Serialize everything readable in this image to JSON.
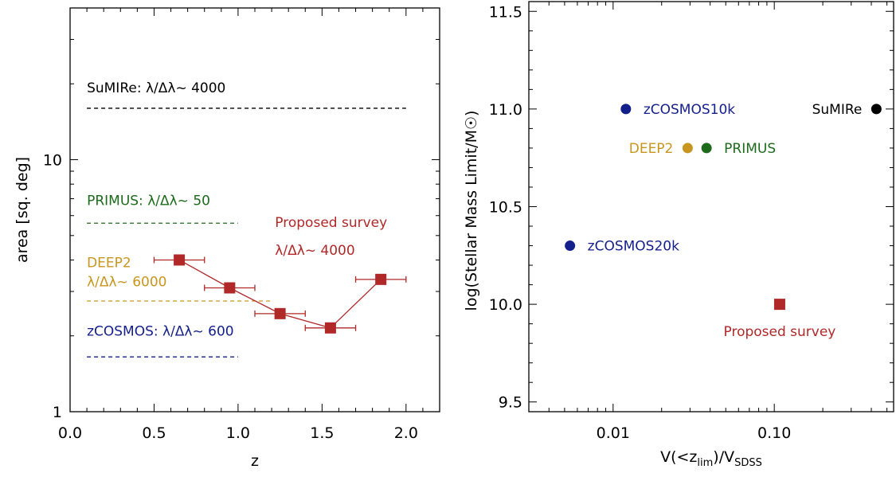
{
  "colors": {
    "sumire": "#000000",
    "primus": "#1b6b1b",
    "deep2": "#c8961e",
    "zcosmos": "#131f8a",
    "proposed": "#b02828"
  },
  "chart_data": [
    {
      "type": "line",
      "xlabel": "z",
      "ylabel": "area [sq. deg]",
      "xlim": [
        0.0,
        2.2
      ],
      "ylim": [
        1,
        40
      ],
      "yscale": "log",
      "grid": false,
      "xticks": [
        {
          "value": 0.0,
          "label": "0.0"
        },
        {
          "value": 0.5,
          "label": "0.5"
        },
        {
          "value": 1.0,
          "label": "1.0"
        },
        {
          "value": 1.5,
          "label": "1.5"
        },
        {
          "value": 2.0,
          "label": "2.0"
        }
      ],
      "yticks": [
        {
          "value": 1,
          "label": "1"
        },
        {
          "value": 10,
          "label": "10"
        }
      ],
      "hlines": [
        {
          "key": "sumire",
          "y": 16,
          "x": [
            0.1,
            2.0
          ]
        },
        {
          "key": "primus",
          "y": 5.6,
          "x": [
            0.1,
            1.0
          ]
        },
        {
          "key": "deep2",
          "y": 2.75,
          "x": [
            0.1,
            1.2
          ]
        },
        {
          "key": "zcosmos",
          "y": 1.65,
          "x": [
            0.1,
            1.0
          ]
        }
      ],
      "series": [
        {
          "name": "Proposed survey",
          "x": [
            0.65,
            0.95,
            1.25,
            1.55,
            1.85
          ],
          "y": [
            4.0,
            3.1,
            2.45,
            2.15,
            3.35
          ],
          "xerr": [
            0.15,
            0.15,
            0.15,
            0.15,
            0.15
          ]
        }
      ],
      "annotations": [
        {
          "key": "sumire",
          "x": 0.1,
          "y": 18.5,
          "text": "SuMIRe: λ/Δλ~ 4000"
        },
        {
          "key": "primus",
          "x": 0.1,
          "y": 6.6,
          "text": "PRIMUS: λ/Δλ~ 50"
        },
        {
          "key": "proposed",
          "x": 1.22,
          "y": 5.4,
          "text": "Proposed survey"
        },
        {
          "key": "proposed",
          "x": 1.22,
          "y": 4.2,
          "text": "λ/Δλ~ 4000"
        },
        {
          "key": "deep2",
          "x": 0.1,
          "y": 3.75,
          "text": "DEEP2"
        },
        {
          "key": "deep2",
          "x": 0.1,
          "y": 3.15,
          "text": "λ/Δλ~ 6000"
        },
        {
          "key": "zcosmos",
          "x": 0.1,
          "y": 2.0,
          "text": "zCOSMOS: λ/Δλ~ 600"
        }
      ]
    },
    {
      "type": "scatter",
      "xlabel": "V(<z",
      "xlabel_sub1": "lim",
      "xlabel_mid": ")/V",
      "xlabel_sub2": "SDSS",
      "ylabel": "log(Stellar Mass Limit/M",
      "ylabel_sym": "☉",
      "ylabel_end": ")",
      "xscale": "log",
      "xlim": [
        0.003,
        0.55
      ],
      "ylim": [
        9.45,
        11.55
      ],
      "grid": false,
      "xticks": [
        {
          "value": 0.01,
          "label": "0.01"
        },
        {
          "value": 0.1,
          "label": "0.10"
        }
      ],
      "yticks": [
        {
          "value": 9.5,
          "label": "9.5"
        },
        {
          "value": 10.0,
          "label": "10.0"
        },
        {
          "value": 10.5,
          "label": "10.5"
        },
        {
          "value": 11.0,
          "label": "11.0"
        },
        {
          "value": 11.5,
          "label": "11.5"
        }
      ],
      "points": [
        {
          "label": "zCOSMOS10k",
          "x": 0.012,
          "y": 11.0,
          "key": "zcosmos",
          "marker": "circle",
          "label_side": "right"
        },
        {
          "label": "SuMIRe",
          "x": 0.43,
          "y": 11.0,
          "key": "sumire",
          "marker": "circle",
          "label_side": "left"
        },
        {
          "label": "DEEP2",
          "x": 0.029,
          "y": 10.8,
          "key": "deep2",
          "marker": "circle",
          "label_side": "left"
        },
        {
          "label": "PRIMUS",
          "x": 0.038,
          "y": 10.8,
          "key": "primus",
          "marker": "circle",
          "label_side": "right"
        },
        {
          "label": "zCOSMOS20k",
          "x": 0.0054,
          "y": 10.3,
          "key": "zcosmos",
          "marker": "circle",
          "label_side": "right"
        },
        {
          "label": "Proposed survey",
          "x": 0.108,
          "y": 10.0,
          "key": "proposed",
          "marker": "square",
          "label_side": "below"
        }
      ]
    }
  ]
}
